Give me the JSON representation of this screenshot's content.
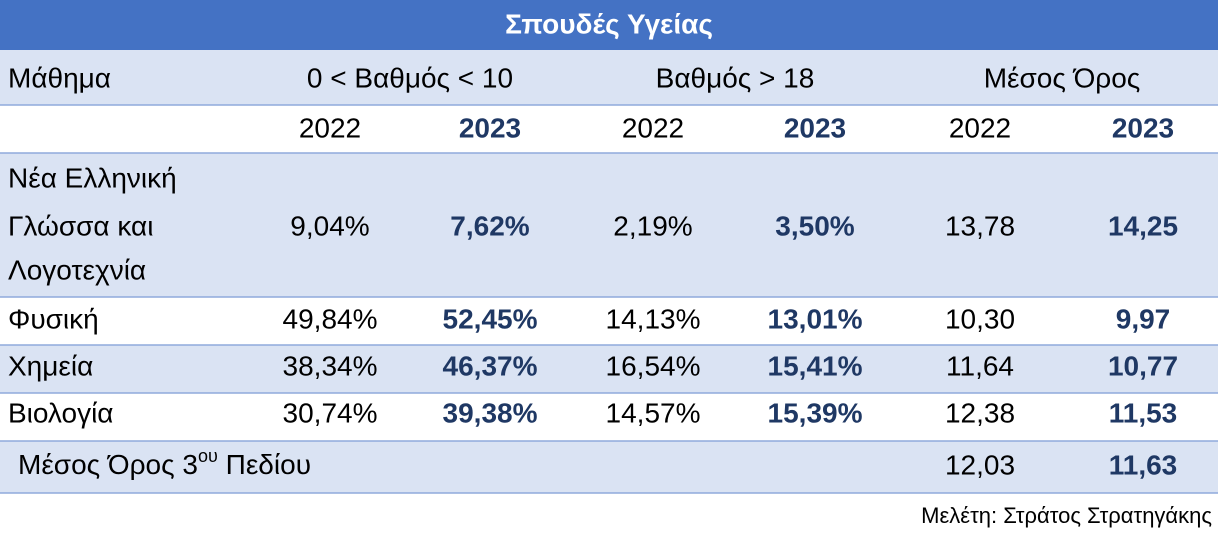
{
  "title": "Σπουδές Υγείας",
  "header": {
    "subject": "Μάθημα",
    "groups": [
      "0 < Βαθμός < 10",
      "Βαθμός > 18",
      "Μέσος Όρος"
    ],
    "years": [
      "2022",
      "2023",
      "2022",
      "2023",
      "2022",
      "2023"
    ]
  },
  "rows": [
    {
      "subject": [
        "Νέα Ελληνική",
        "Γλώσσα και",
        "Λογοτεχνία"
      ],
      "cells": [
        "9,04%",
        "7,62%",
        "2,19%",
        "3,50%",
        "13,78",
        "14,25"
      ]
    },
    {
      "subject": [
        "Φυσική"
      ],
      "cells": [
        "49,84%",
        "52,45%",
        "14,13%",
        "13,01%",
        "10,30",
        "9,97"
      ]
    },
    {
      "subject": [
        "Χημεία"
      ],
      "cells": [
        "38,34%",
        "46,37%",
        "16,54%",
        "15,41%",
        "11,64",
        "10,77"
      ]
    },
    {
      "subject": [
        "Βιολογία"
      ],
      "cells": [
        "30,74%",
        "39,38%",
        "14,57%",
        "15,39%",
        "12,38",
        "11,53"
      ]
    }
  ],
  "mean_row": {
    "label": "Μέσος Όρος 3",
    "label_sup": "ου",
    "label_after": " Πεδίου",
    "cells": [
      "12,03",
      "11,63"
    ]
  },
  "footer": "Μελέτη: Στράτος Στρατηγάκης"
}
